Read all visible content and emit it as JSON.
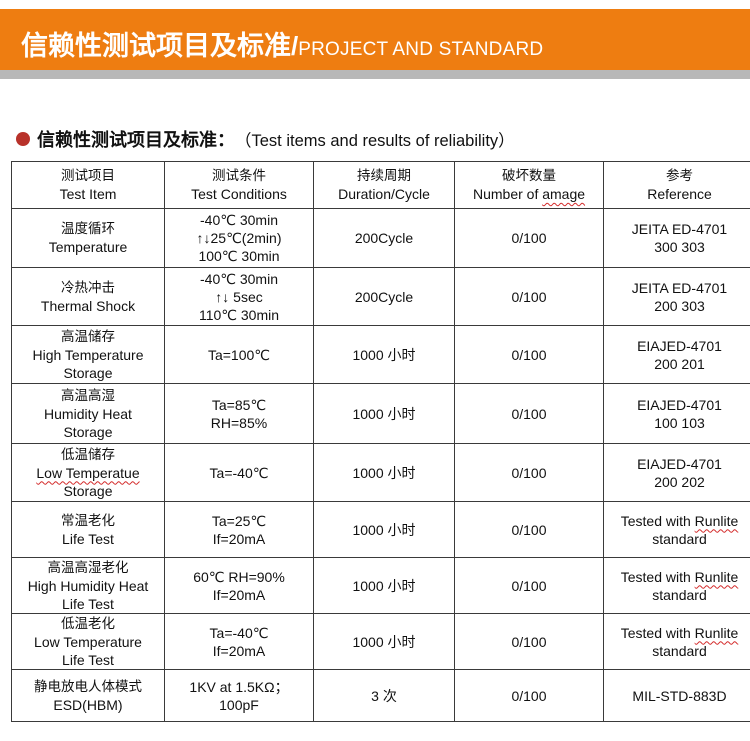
{
  "banner": {
    "title_cn": "信赖性测试项目及标准",
    "separator": "/",
    "title_en": "PROJECT AND STANDARD",
    "color": "#ee7d11"
  },
  "section": {
    "bullet_color": "#b8322a",
    "title_cn": "信赖性测试项目及标准：",
    "title_en": "（Test items and results of reliability）"
  },
  "table": {
    "headers": [
      {
        "cn": "测试项目",
        "en": "Test Item"
      },
      {
        "cn": "测试条件",
        "en": "Test Conditions"
      },
      {
        "cn": "持续周期",
        "en": "Duration/Cycle"
      },
      {
        "cn": "破坏数量",
        "en_prefix": "Number of ",
        "en_wavy": "amage"
      },
      {
        "cn": "参考",
        "en": "Reference"
      }
    ],
    "rows": [
      {
        "item_cn": "温度循环",
        "item_en": "Temperature",
        "conditions": [
          "-40℃ 30min",
          "↑↓25℃(2min)",
          "100℃ 30min"
        ],
        "duration": "200Cycle",
        "damage": "0/100",
        "reference": [
          "JEITA ED-4701",
          "300 303"
        ]
      },
      {
        "item_cn": "冷热冲击",
        "item_en": "Thermal Shock",
        "conditions": [
          "-40℃ 30min",
          "↑↓ 5sec",
          "110℃ 30min"
        ],
        "duration": "200Cycle",
        "damage": "0/100",
        "reference": [
          "JEITA ED-4701",
          "200 303"
        ]
      },
      {
        "item_cn": "高温储存",
        "item_en": "High Temperature",
        "item_en2": "Storage",
        "conditions": [
          "Ta=100℃"
        ],
        "duration": "1000 小时",
        "damage": "0/100",
        "reference": [
          "EIAJED-4701",
          "200 201"
        ]
      },
      {
        "item_cn": "高温高湿",
        "item_en": "Humidity Heat",
        "item_en2": "Storage",
        "conditions": [
          "Ta=85℃",
          "RH=85%"
        ],
        "duration": "1000 小时",
        "damage": "0/100",
        "reference": [
          "EIAJED-4701",
          "100 103"
        ]
      },
      {
        "item_cn": "低温储存",
        "item_en": "Low Temperatue",
        "item_en2": "Storage",
        "conditions": [
          "Ta=-40℃"
        ],
        "duration": "1000 小时",
        "damage": "0/100",
        "reference": [
          "EIAJED-4701",
          "200 202"
        ]
      },
      {
        "item_cn": "常温老化",
        "item_en": "Life Test",
        "conditions": [
          "Ta=25℃",
          "If=20mA"
        ],
        "duration": "1000 小时",
        "damage": "0/100",
        "reference_prefix": "Tested with ",
        "reference_wavy": "Runlite",
        "reference_line2": "standard"
      },
      {
        "item_cn": "高温高湿老化",
        "item_en": "High Humidity Heat",
        "item_en2": "Life Test",
        "conditions": [
          "60℃ RH=90%",
          "If=20mA"
        ],
        "duration": "1000 小时",
        "damage": "0/100",
        "reference_prefix": "Tested with ",
        "reference_wavy": "Runlite",
        "reference_line2": "standard"
      },
      {
        "item_cn": "低温老化",
        "item_en": "Low Temperature",
        "item_en2": "Life Test",
        "conditions": [
          "Ta=-40℃",
          "If=20mA"
        ],
        "duration": "1000 小时",
        "damage": "0/100",
        "reference_prefix": "Tested with ",
        "reference_wavy": "Runlite",
        "reference_line2": "standard"
      },
      {
        "item_cn": "静电放电人体模式",
        "item_en": "ESD(HBM)",
        "conditions": [
          "1KV at 1.5KΩ；",
          "100pF"
        ],
        "duration": "3 次",
        "damage": "0/100",
        "reference": [
          "MIL-STD-883D"
        ]
      }
    ]
  }
}
